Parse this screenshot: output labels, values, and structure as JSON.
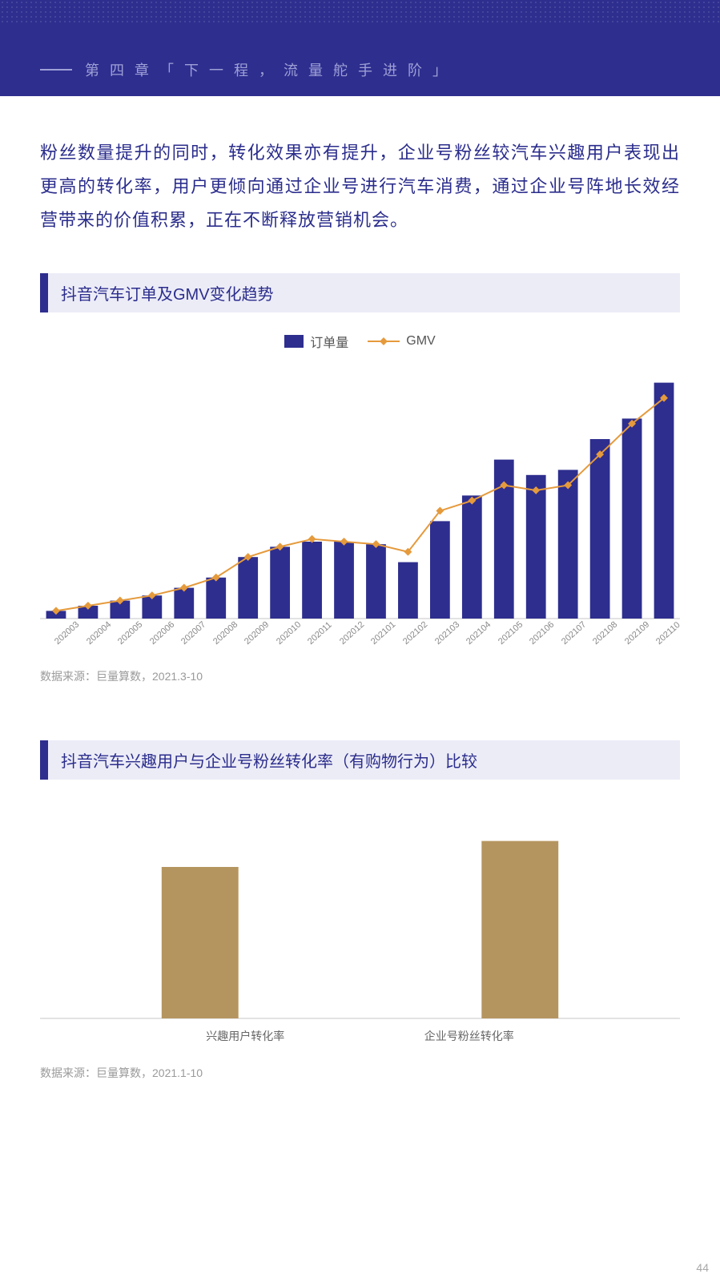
{
  "header": {
    "chapter_label": "第 四 章 「 下 一 程 ， 流 量 舵 手 进 阶 」",
    "page_number": "44",
    "band_color": "#2e2e8f",
    "dash_color": "#9ea0d6",
    "text_color": "#9ea0d6"
  },
  "body": {
    "text": "粉丝数量提升的同时，转化效果亦有提升，企业号粉丝较汽车兴趣用户表现出更高的转化率，用户更倾向通过企业号进行汽车消费，通过企业号阵地长效经营带来的价值积累，正在不断释放营销机会。",
    "color": "#2b2d8c"
  },
  "chart1": {
    "title": "抖音汽车订单及GMV变化趋势",
    "type": "bar+line",
    "legend": {
      "bar": "订单量",
      "line": "GMV"
    },
    "categories": [
      "202003",
      "202004",
      "202005",
      "202006",
      "202007",
      "202008",
      "202009",
      "202010",
      "202011",
      "202012",
      "202101",
      "202102",
      "202103",
      "202104",
      "202105",
      "202106",
      "202107",
      "202108",
      "202109",
      "202110"
    ],
    "bar_values": [
      3,
      5,
      7,
      9,
      12,
      16,
      24,
      28,
      30,
      30,
      29,
      22,
      38,
      48,
      62,
      56,
      58,
      70,
      78,
      92
    ],
    "line_values": [
      3,
      5,
      7,
      9,
      12,
      16,
      24,
      28,
      31,
      30,
      29,
      26,
      42,
      46,
      52,
      50,
      52,
      64,
      76,
      86
    ],
    "ylim": [
      0,
      100
    ],
    "bar_color": "#2e2e8f",
    "line_color": "#e59a3c",
    "marker_style": "diamond",
    "marker_size": 5,
    "line_width": 2,
    "bar_width": 0.62,
    "axis_color": "#c7c7c7",
    "background_color": "#ffffff",
    "xlabel_fontsize": 11,
    "source": "数据来源：巨量算数，2021.3-10"
  },
  "chart2": {
    "title": "抖音汽车兴趣用户与企业号粉丝转化率（有购物行为）比较",
    "type": "bar",
    "categories": [
      "兴趣用户转化率",
      "企业号粉丝转化率"
    ],
    "values": [
      70,
      82
    ],
    "ylim": [
      0,
      100
    ],
    "bar_color": "#b5955f",
    "bar_width": 0.12,
    "axis_color": "#c7c7c7",
    "background_color": "#ffffff",
    "label_fontsize": 14,
    "source": "数据来源：巨量算数，2021.1-10"
  },
  "section_title_style": {
    "bg": "#ececf7",
    "border": "#2e2e8f",
    "color": "#2b2d8c"
  }
}
